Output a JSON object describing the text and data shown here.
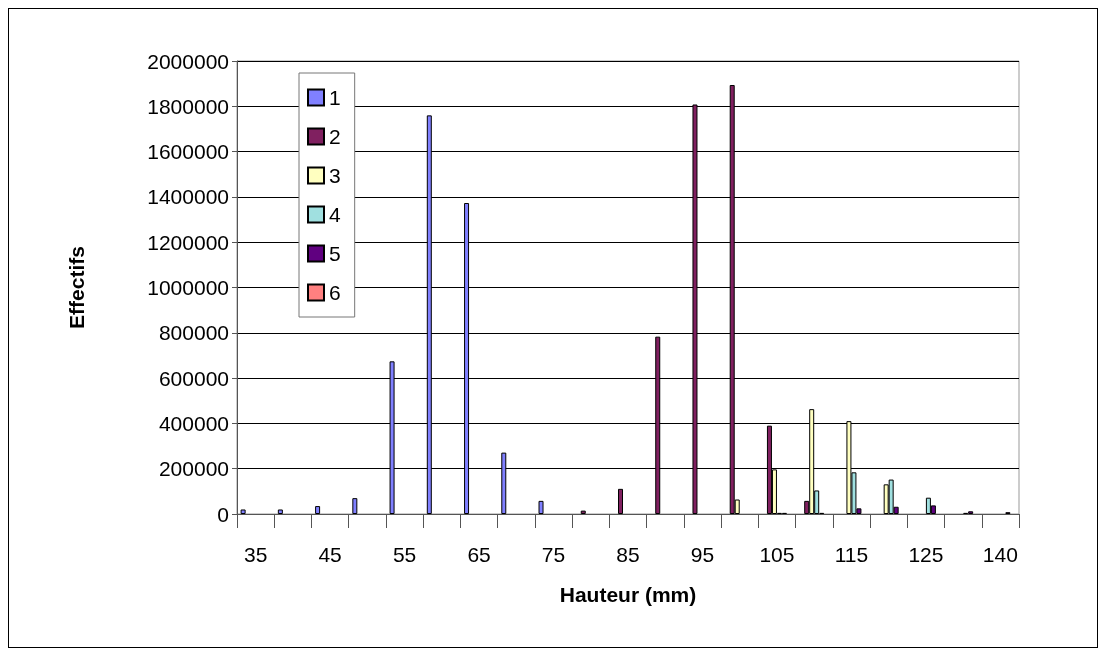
{
  "chart_data": {
    "type": "bar",
    "xlabel": "Hauteur (mm)",
    "ylabel": "Effectifs",
    "categories": [
      "35",
      null,
      "45",
      null,
      "55",
      null,
      "65",
      null,
      "75",
      null,
      "85",
      null,
      "95",
      null,
      "105",
      null,
      "115",
      null,
      "125",
      null,
      "140"
    ],
    "series": [
      {
        "name": "1",
        "color": "#8080ff",
        "values": [
          20000,
          20000,
          35000,
          70000,
          674000,
          1760000,
          1373000,
          271000,
          58000,
          null,
          null,
          null,
          null,
          null,
          null,
          null,
          null,
          null,
          null,
          null,
          null
        ]
      },
      {
        "name": "2",
        "color": "#802060",
        "values": [
          null,
          null,
          null,
          null,
          null,
          null,
          null,
          null,
          null,
          15000,
          111000,
          783000,
          1808000,
          1894000,
          390000,
          58000,
          null,
          null,
          null,
          null,
          null
        ]
      },
      {
        "name": "3",
        "color": "#ffffc0",
        "values": [
          null,
          null,
          null,
          null,
          null,
          null,
          null,
          null,
          null,
          null,
          null,
          null,
          null,
          64000,
          197000,
          463000,
          410000,
          131000,
          null,
          null,
          null
        ]
      },
      {
        "name": "4",
        "color": "#a0e0e0",
        "values": [
          null,
          null,
          null,
          null,
          null,
          null,
          null,
          null,
          null,
          null,
          null,
          null,
          null,
          null,
          5000,
          104000,
          184000,
          152000,
          72000,
          5000,
          null
        ]
      },
      {
        "name": "5",
        "color": "#600080",
        "values": [
          null,
          null,
          null,
          null,
          null,
          null,
          null,
          null,
          null,
          null,
          null,
          null,
          null,
          null,
          5000,
          5000,
          25000,
          32000,
          38000,
          12000,
          8000
        ]
      },
      {
        "name": "6",
        "color": "#ff8080",
        "values": [
          null,
          null,
          null,
          null,
          null,
          null,
          null,
          null,
          null,
          null,
          null,
          null,
          null,
          null,
          null,
          null,
          null,
          null,
          null,
          null,
          null
        ]
      }
    ],
    "ylim": [
      0,
      2000000
    ],
    "yticks": [
      0,
      200000,
      400000,
      600000,
      800000,
      1000000,
      1200000,
      1400000,
      1600000,
      1800000,
      2000000
    ],
    "grid": "y",
    "legend": "top left"
  }
}
